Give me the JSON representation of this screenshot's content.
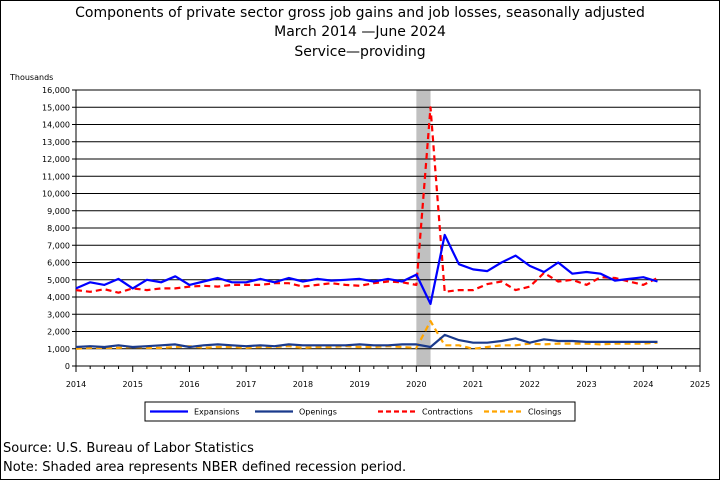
{
  "chart_data": {
    "type": "line",
    "title": "Components of private sector gross job gains and job losses, seasonally adjusted",
    "subtitle": "March 2014 —June 2024",
    "subtitle2": "Service—providing",
    "ylabel": "Thousands",
    "xlabel": "",
    "ylim": [
      0,
      16000
    ],
    "xlim": [
      2014,
      2025
    ],
    "y_ticks": [
      "0",
      "1,000",
      "2,000",
      "3,000",
      "4,000",
      "5,000",
      "6,000",
      "7,000",
      "8,000",
      "9,000",
      "10,000",
      "11,000",
      "12,000",
      "13,000",
      "14,000",
      "15,000",
      "16,000"
    ],
    "x_ticks": [
      "2014",
      "2015",
      "2016",
      "2017",
      "2018",
      "2019",
      "2020",
      "2021",
      "2022",
      "2023",
      "2024",
      "2025"
    ],
    "grid": "horizontal",
    "legend_position": "bottom",
    "recession": {
      "start": 2020.0,
      "end": 2020.25,
      "color": "#c0c0c0"
    },
    "series": [
      {
        "name": "Expansions",
        "color": "#0000ff",
        "dash": "solid",
        "width": 2.2,
        "x": [
          2014.0,
          2014.25,
          2014.5,
          2014.75,
          2015.0,
          2015.25,
          2015.5,
          2015.75,
          2016.0,
          2016.25,
          2016.5,
          2016.75,
          2017.0,
          2017.25,
          2017.5,
          2017.75,
          2018.0,
          2018.25,
          2018.5,
          2018.75,
          2019.0,
          2019.25,
          2019.5,
          2019.75,
          2020.0,
          2020.25,
          2020.5,
          2020.75,
          2021.0,
          2021.25,
          2021.5,
          2021.75,
          2022.0,
          2022.25,
          2022.5,
          2022.75,
          2023.0,
          2023.25,
          2023.5,
          2023.75,
          2024.0,
          2024.25
        ],
        "y": [
          4500,
          4850,
          4700,
          5050,
          4500,
          5000,
          4850,
          5200,
          4700,
          4900,
          5100,
          4850,
          4850,
          5050,
          4850,
          5100,
          4900,
          5050,
          4950,
          5000,
          5050,
          4900,
          5050,
          4900,
          5300,
          3600,
          7600,
          5900,
          5600,
          5500,
          6000,
          6400,
          5800,
          5450,
          6000,
          5350,
          5450,
          5350,
          4950,
          5050,
          5150,
          4900
        ]
      },
      {
        "name": "Openings",
        "color": "#1a3a8c",
        "dash": "solid",
        "width": 2.2,
        "x": [
          2014.0,
          2014.25,
          2014.5,
          2014.75,
          2015.0,
          2015.25,
          2015.5,
          2015.75,
          2016.0,
          2016.25,
          2016.5,
          2016.75,
          2017.0,
          2017.25,
          2017.5,
          2017.75,
          2018.0,
          2018.25,
          2018.5,
          2018.75,
          2019.0,
          2019.25,
          2019.5,
          2019.75,
          2020.0,
          2020.25,
          2020.5,
          2020.75,
          2021.0,
          2021.25,
          2021.5,
          2021.75,
          2022.0,
          2022.25,
          2022.5,
          2022.75,
          2023.0,
          2023.25,
          2023.5,
          2023.75,
          2024.0,
          2024.25
        ],
        "y": [
          1100,
          1150,
          1100,
          1200,
          1100,
          1150,
          1200,
          1250,
          1100,
          1200,
          1250,
          1200,
          1150,
          1200,
          1150,
          1250,
          1200,
          1200,
          1200,
          1200,
          1250,
          1200,
          1200,
          1250,
          1250,
          1100,
          1800,
          1500,
          1350,
          1350,
          1450,
          1600,
          1350,
          1550,
          1450,
          1450,
          1400,
          1400,
          1400,
          1400,
          1400,
          1400
        ]
      },
      {
        "name": "Contractions",
        "color": "#ff0000",
        "dash": "6,4",
        "width": 2.2,
        "x": [
          2014.0,
          2014.25,
          2014.5,
          2014.75,
          2015.0,
          2015.25,
          2015.5,
          2015.75,
          2016.0,
          2016.25,
          2016.5,
          2016.75,
          2017.0,
          2017.25,
          2017.5,
          2017.75,
          2018.0,
          2018.25,
          2018.5,
          2018.75,
          2019.0,
          2019.25,
          2019.5,
          2019.75,
          2020.0,
          2020.25,
          2020.5,
          2020.75,
          2021.0,
          2021.25,
          2021.5,
          2021.75,
          2022.0,
          2022.25,
          2022.5,
          2022.75,
          2023.0,
          2023.25,
          2023.5,
          2023.75,
          2024.0,
          2024.25
        ],
        "y": [
          4400,
          4300,
          4450,
          4250,
          4500,
          4400,
          4500,
          4500,
          4600,
          4650,
          4600,
          4700,
          4700,
          4700,
          4800,
          4800,
          4600,
          4700,
          4800,
          4700,
          4650,
          4800,
          4900,
          4850,
          4700,
          15000,
          4300,
          4400,
          4400,
          4750,
          4900,
          4400,
          4600,
          5400,
          4900,
          5000,
          4700,
          5150,
          5100,
          4900,
          4700,
          5100
        ]
      },
      {
        "name": "Closings",
        "color": "#ffa500",
        "dash": "6,4",
        "width": 2.2,
        "x": [
          2014.0,
          2014.25,
          2014.5,
          2014.75,
          2015.0,
          2015.25,
          2015.5,
          2015.75,
          2016.0,
          2016.25,
          2016.5,
          2016.75,
          2017.0,
          2017.25,
          2017.5,
          2017.75,
          2018.0,
          2018.25,
          2018.5,
          2018.75,
          2019.0,
          2019.25,
          2019.5,
          2019.75,
          2020.0,
          2020.25,
          2020.5,
          2020.75,
          2021.0,
          2021.25,
          2021.5,
          2021.75,
          2022.0,
          2022.25,
          2022.5,
          2022.75,
          2023.0,
          2023.25,
          2023.5,
          2023.75,
          2024.0,
          2024.25
        ],
        "y": [
          1000,
          1050,
          1050,
          1050,
          1100,
          1050,
          1050,
          1100,
          1150,
          1050,
          1100,
          1100,
          1050,
          1100,
          1100,
          1150,
          1050,
          1100,
          1100,
          1150,
          1100,
          1100,
          1150,
          1100,
          1050,
          2600,
          1200,
          1200,
          1000,
          1100,
          1200,
          1200,
          1300,
          1250,
          1300,
          1300,
          1300,
          1250,
          1300,
          1300,
          1300,
          1350
        ]
      }
    ]
  },
  "footer": {
    "source": "Source: U.S. Bureau of Labor Statistics",
    "note": "Note: Shaded area represents NBER defined recession period."
  }
}
